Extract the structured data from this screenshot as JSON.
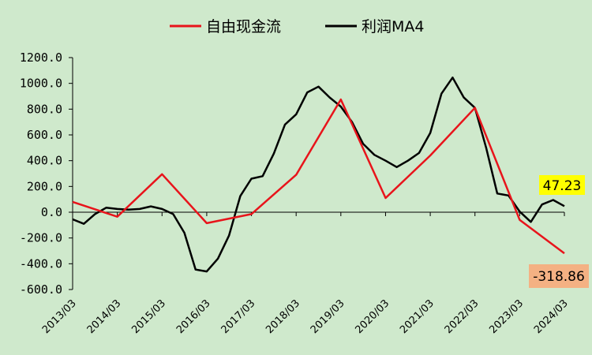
{
  "chart_data": {
    "type": "line",
    "x": [
      "2013/03",
      "2013/06",
      "2013/09",
      "2013/12",
      "2014/03",
      "2014/06",
      "2014/09",
      "2014/12",
      "2015/03",
      "2015/06",
      "2015/09",
      "2015/12",
      "2016/03",
      "2016/06",
      "2016/09",
      "2016/12",
      "2017/03",
      "2017/06",
      "2017/09",
      "2017/12",
      "2018/03",
      "2018/06",
      "2018/09",
      "2018/12",
      "2019/03",
      "2019/06",
      "2019/09",
      "2019/12",
      "2020/03",
      "2020/06",
      "2020/09",
      "2020/12",
      "2021/03",
      "2021/06",
      "2021/09",
      "2021/12",
      "2022/03",
      "2022/06",
      "2022/09",
      "2022/12",
      "2023/03",
      "2023/06",
      "2023/09",
      "2023/12",
      "2024/03"
    ],
    "xtick_labels": [
      "2013/03",
      "2014/03",
      "2015/03",
      "2016/03",
      "2017/03",
      "2018/03",
      "2019/03",
      "2020/03",
      "2021/03",
      "2022/03",
      "2023/03",
      "2024/03"
    ],
    "series": [
      {
        "name": "自由现金流",
        "color": "#e8141b",
        "points": [
          {
            "x": "2013/03",
            "y": 80
          },
          {
            "x": "2014/03",
            "y": -35
          },
          {
            "x": "2015/03",
            "y": 295
          },
          {
            "x": "2016/03",
            "y": -85
          },
          {
            "x": "2017/03",
            "y": -15
          },
          {
            "x": "2018/03",
            "y": 290
          },
          {
            "x": "2019/03",
            "y": 875
          },
          {
            "x": "2020/03",
            "y": 110
          },
          {
            "x": "2021/03",
            "y": 440
          },
          {
            "x": "2022/03",
            "y": 810
          },
          {
            "x": "2023/03",
            "y": -60
          },
          {
            "x": "2024/03",
            "y": -318.86
          }
        ]
      },
      {
        "name": "利润MA4",
        "color": "#000000",
        "values": [
          -55,
          -90,
          -15,
          35,
          25,
          20,
          25,
          45,
          25,
          -15,
          -160,
          -445,
          -460,
          -360,
          -180,
          125,
          260,
          280,
          455,
          680,
          760,
          930,
          975,
          890,
          820,
          700,
          530,
          445,
          400,
          350,
          400,
          460,
          615,
          920,
          1045,
          890,
          810,
          500,
          145,
          130,
          5,
          -75,
          60,
          95,
          47.23
        ]
      }
    ],
    "title": "",
    "xlabel": "",
    "ylabel": "",
    "ylim": [
      -600,
      1200
    ],
    "yticks": [
      "1200.0",
      "1000.0",
      "800.0",
      "600.0",
      "400.0",
      "200.0",
      "0.0",
      "-200.0",
      "-400.0",
      "-600.0"
    ],
    "grid": false,
    "legend": "top-center",
    "annotations": [
      {
        "text": "47.23",
        "background": "#ffff00",
        "series": "利润MA4"
      },
      {
        "text": "-318.86",
        "background": "#f4b183",
        "series": "自由现金流"
      }
    ]
  }
}
